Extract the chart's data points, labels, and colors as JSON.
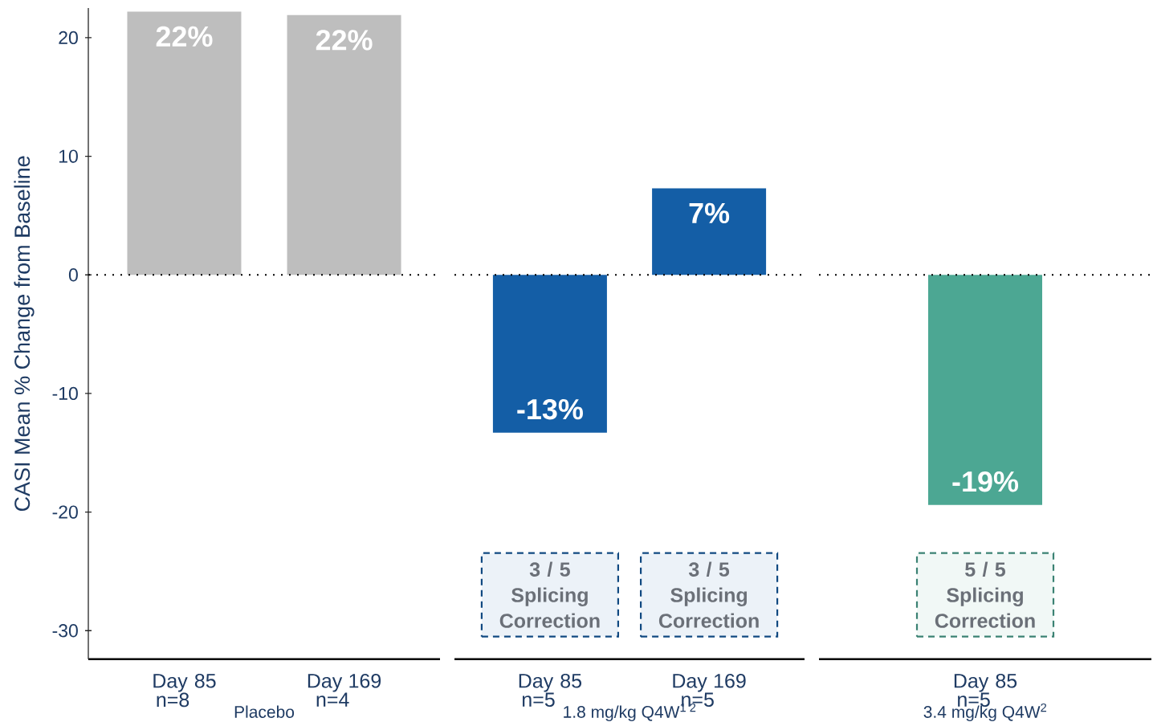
{
  "chart_data": [
    {
      "type": "bar",
      "ylabel": "CASI Mean % Change from Baseline",
      "xlabel": "Placebo",
      "categories": [
        "Day 85 n=8",
        "Day 169 n=4"
      ],
      "values": [
        22.2,
        21.9
      ],
      "value_labels": [
        "22%",
        "22%"
      ],
      "color": "#bebebe",
      "ylim": [
        -32.4,
        22.5
      ],
      "yticks": [
        -30,
        -20,
        -10,
        0,
        10,
        20
      ],
      "ref_lines": [
        {
          "axis": "y",
          "value": 0,
          "line_style": "dotted"
        }
      ]
    },
    {
      "type": "bar",
      "xlabel": "1.8 mg/kg Q4W$^{1 2}$",
      "categories": [
        "Day 85 n=5",
        "Day 169 n=5"
      ],
      "values": [
        -13.3,
        7.3
      ],
      "value_labels": [
        "-13%",
        "7%"
      ],
      "color": "#145ea6",
      "ylim": [
        -32.4,
        20
      ],
      "yticks": [
        -30,
        -20,
        -10,
        0,
        10,
        20
      ],
      "tick_labels": "x",
      "ref_lines": [
        {
          "axis": "y",
          "value": 0,
          "line_style": "dotted"
        }
      ],
      "annotations": [
        "3 / 5 Splicing Correction",
        "3 / 5 Splicing Correction"
      ]
    },
    {
      "type": "bar",
      "xlabel": "3.4 mg/kg Q4W$^{2}$",
      "categories": [
        "Day 85 n=5"
      ],
      "values": [
        -19.4
      ],
      "value_labels": [
        "-19%"
      ],
      "color": "#4ca793",
      "ylim": [
        -32.4,
        20
      ],
      "yticks": [
        -30,
        -20,
        -10,
        0,
        10,
        20
      ],
      "tick_labels": "x",
      "ref_lines": [
        {
          "axis": "y",
          "value": 0,
          "line_style": "dotted"
        }
      ],
      "annotations": [
        "5 / 5 Splicing Correction"
      ]
    }
  ]
}
